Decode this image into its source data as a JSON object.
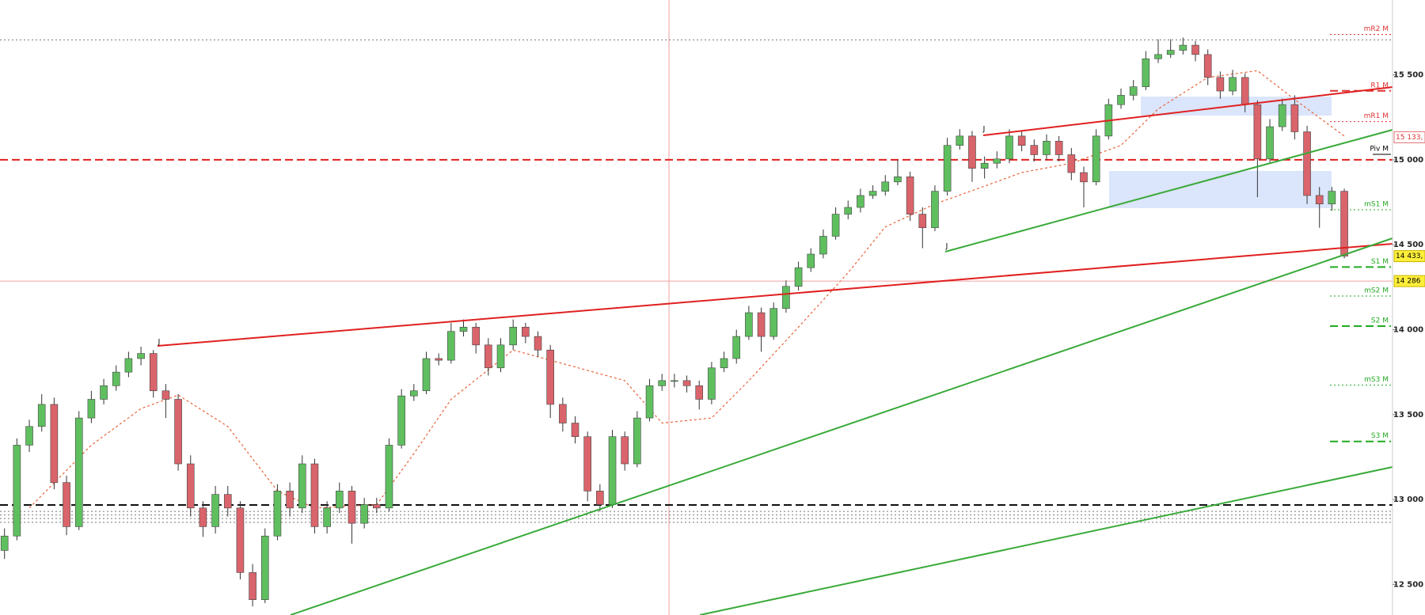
{
  "chart_data": {
    "type": "candlestick",
    "up_color": "#5fbf5f",
    "down_color": "#d9646b",
    "wick_color": "#333",
    "ylim": [
      12320,
      15941
    ],
    "yticks": [
      {
        "value": 12500,
        "label": "12 500"
      },
      {
        "value": 13000,
        "label": "13 000"
      },
      {
        "value": 13500,
        "label": "13 500"
      },
      {
        "value": 14000,
        "label": "14 000"
      },
      {
        "value": 14500,
        "label": "14 500"
      },
      {
        "value": 15000,
        "label": "15 000"
      },
      {
        "value": 15500,
        "label": "15 500"
      }
    ],
    "candles": [
      [
        12700,
        12830,
        12650,
        12785
      ],
      [
        12785,
        13360,
        12760,
        13320
      ],
      [
        13320,
        13470,
        13280,
        13430
      ],
      [
        13430,
        13620,
        13400,
        13560
      ],
      [
        13560,
        13600,
        13060,
        13100
      ],
      [
        13100,
        13140,
        12790,
        12840
      ],
      [
        12840,
        13520,
        12820,
        13480
      ],
      [
        13480,
        13640,
        13450,
        13590
      ],
      [
        13590,
        13710,
        13560,
        13670
      ],
      [
        13670,
        13790,
        13640,
        13750
      ],
      [
        13750,
        13870,
        13720,
        13830
      ],
      [
        13830,
        13900,
        13790,
        13860
      ],
      [
        13860,
        13880,
        13600,
        13640
      ],
      [
        13640,
        13680,
        13480,
        13590
      ],
      [
        13590,
        13620,
        13170,
        13210
      ],
      [
        13210,
        13260,
        12900,
        12950
      ],
      [
        12950,
        12990,
        12780,
        12840
      ],
      [
        12840,
        13080,
        12800,
        13030
      ],
      [
        13030,
        13080,
        12900,
        12950
      ],
      [
        12950,
        12990,
        12530,
        12570
      ],
      [
        12570,
        12620,
        12370,
        12410
      ],
      [
        12410,
        12830,
        12390,
        12785
      ],
      [
        12785,
        13090,
        12760,
        13050
      ],
      [
        13050,
        13100,
        12900,
        12950
      ],
      [
        12950,
        13260,
        12920,
        13210
      ],
      [
        13210,
        13240,
        12800,
        12840
      ],
      [
        12840,
        12990,
        12800,
        12950
      ],
      [
        12950,
        13100,
        12920,
        13050
      ],
      [
        13050,
        13080,
        12740,
        12860
      ],
      [
        12860,
        13010,
        12830,
        12970
      ],
      [
        12970,
        13010,
        12920,
        12950
      ],
      [
        12950,
        13360,
        12930,
        13320
      ],
      [
        13320,
        13650,
        13300,
        13610
      ],
      [
        13610,
        13680,
        13580,
        13640
      ],
      [
        13640,
        13870,
        13620,
        13830
      ],
      [
        13830,
        13860,
        13790,
        13820
      ],
      [
        13820,
        14040,
        13800,
        13990
      ],
      [
        13990,
        14060,
        13960,
        14015
      ],
      [
        14015,
        14040,
        13860,
        13910
      ],
      [
        13910,
        13950,
        13730,
        13775
      ],
      [
        13775,
        13950,
        13750,
        13910
      ],
      [
        13910,
        14060,
        13880,
        14015
      ],
      [
        14015,
        14040,
        13920,
        13960
      ],
      [
        13960,
        13990,
        13840,
        13880
      ],
      [
        13880,
        13910,
        13480,
        13560
      ],
      [
        13560,
        13600,
        13400,
        13450
      ],
      [
        13450,
        13490,
        13330,
        13370
      ],
      [
        13370,
        13400,
        12990,
        13050
      ],
      [
        13050,
        13090,
        12930,
        12970
      ],
      [
        12970,
        13410,
        12950,
        13370
      ],
      [
        13370,
        13400,
        13170,
        13210
      ],
      [
        13210,
        13520,
        13190,
        13480
      ],
      [
        13480,
        13710,
        13460,
        13670
      ],
      [
        13670,
        13740,
        13640,
        13700
      ],
      [
        13700,
        13740,
        13660,
        13700
      ],
      [
        13700,
        13730,
        13630,
        13670
      ],
      [
        13670,
        13700,
        13530,
        13590
      ],
      [
        13590,
        13810,
        13560,
        13775
      ],
      [
        13775,
        13870,
        13750,
        13830
      ],
      [
        13830,
        14000,
        13800,
        13960
      ],
      [
        13960,
        14140,
        13940,
        14100
      ],
      [
        14100,
        14130,
        13870,
        13960
      ],
      [
        13960,
        14160,
        13940,
        14125
      ],
      [
        14125,
        14290,
        14100,
        14255
      ],
      [
        14255,
        14400,
        14230,
        14365
      ],
      [
        14365,
        14480,
        14340,
        14445
      ],
      [
        14445,
        14590,
        14420,
        14550
      ],
      [
        14550,
        14720,
        14530,
        14680
      ],
      [
        14680,
        14760,
        14650,
        14720
      ],
      [
        14720,
        14830,
        14690,
        14790
      ],
      [
        14790,
        14850,
        14770,
        14815
      ],
      [
        14815,
        14910,
        14790,
        14870
      ],
      [
        14870,
        15000,
        14850,
        14900
      ],
      [
        14900,
        14930,
        14640,
        14680
      ],
      [
        14680,
        14720,
        14480,
        14600
      ],
      [
        14600,
        14850,
        14580,
        14815
      ],
      [
        14815,
        15130,
        14790,
        15085
      ],
      [
        15085,
        15180,
        15060,
        15140
      ],
      [
        15140,
        15170,
        14870,
        14950
      ],
      [
        14950,
        15020,
        14890,
        14980
      ],
      [
        14980,
        15050,
        14950,
        15005
      ],
      [
        15005,
        15180,
        14980,
        15140
      ],
      [
        15140,
        15170,
        15050,
        15085
      ],
      [
        15085,
        15120,
        14990,
        15030
      ],
      [
        15030,
        15150,
        15000,
        15110
      ],
      [
        15110,
        15140,
        14990,
        15030
      ],
      [
        15030,
        15070,
        14880,
        14925
      ],
      [
        14925,
        14960,
        14720,
        14870
      ],
      [
        14870,
        15180,
        14850,
        15140
      ],
      [
        15140,
        15360,
        15120,
        15325
      ],
      [
        15325,
        15420,
        15300,
        15380
      ],
      [
        15380,
        15470,
        15350,
        15430
      ],
      [
        15430,
        15640,
        15410,
        15595
      ],
      [
        15595,
        15710,
        15570,
        15620
      ],
      [
        15620,
        15710,
        15600,
        15645
      ],
      [
        15645,
        15720,
        15620,
        15675
      ],
      [
        15675,
        15700,
        15580,
        15620
      ],
      [
        15620,
        15650,
        15440,
        15485
      ],
      [
        15485,
        15520,
        15360,
        15405
      ],
      [
        15405,
        15530,
        15380,
        15485
      ],
      [
        15485,
        15510,
        15280,
        15325
      ],
      [
        15325,
        15350,
        14780,
        15005
      ],
      [
        15005,
        15240,
        14980,
        15195
      ],
      [
        15195,
        15360,
        15170,
        15325
      ],
      [
        15325,
        15380,
        15120,
        15165
      ],
      [
        15165,
        15200,
        14740,
        14790
      ],
      [
        14790,
        14840,
        14600,
        14740
      ],
      [
        14740,
        14840,
        14700,
        14815
      ],
      [
        14815,
        14830,
        14420,
        14433
      ]
    ],
    "ma": {
      "color": "#e8643c",
      "x": [
        2,
        7,
        11,
        14,
        18,
        22,
        25,
        30,
        33,
        36,
        41,
        45,
        50,
        53,
        57,
        60,
        64,
        68,
        71,
        75,
        79,
        82,
        86,
        90,
        93,
        97,
        101,
        104,
        108
      ],
      "values": [
        12950,
        13320,
        13535,
        13615,
        13430,
        13050,
        12950,
        12970,
        13270,
        13590,
        13880,
        13800,
        13700,
        13450,
        13480,
        13700,
        14015,
        14335,
        14605,
        14740,
        14845,
        14925,
        14980,
        15085,
        15300,
        15485,
        15525,
        15355,
        15140
      ]
    },
    "levels": [
      {
        "name": "mR2 M",
        "value": 15738,
        "color": "#d33",
        "style": "dotted"
      },
      {
        "name": "R1 M",
        "value": 15406,
        "color": "#d33",
        "style": "dashed"
      },
      {
        "name": "mR1 M",
        "value": 15225,
        "color": "#d33",
        "style": "dotted"
      },
      {
        "name": "Piv M",
        "value": 15032,
        "color": "#000",
        "style": "solid"
      },
      {
        "name": "mS1 M",
        "value": 14706,
        "color": "#2a2",
        "style": "dotted"
      },
      {
        "name": "S1 M",
        "value": 14369,
        "color": "#2a2",
        "style": "dashed"
      },
      {
        "name": "mS2 M",
        "value": 14198,
        "color": "#2a2",
        "style": "dotted"
      },
      {
        "name": "S2 M",
        "value": 14021,
        "color": "#2a2",
        "style": "dashed"
      },
      {
        "name": "mS3 M",
        "value": 13674,
        "color": "#2a2",
        "style": "dotted"
      },
      {
        "name": "S3 M",
        "value": 13342,
        "color": "#2a2",
        "style": "dashed"
      }
    ],
    "hlines": [
      {
        "value": 15000,
        "color": "#e02020",
        "style": "dashed"
      },
      {
        "value": 12968,
        "color": "#111",
        "style": "dashed"
      },
      {
        "value": 12930,
        "color": "#777",
        "style": "dotted"
      },
      {
        "value": 12909,
        "color": "#777",
        "style": "dotted"
      },
      {
        "value": 12888,
        "color": "#777",
        "style": "dotted"
      },
      {
        "value": 12866,
        "color": "#777",
        "style": "dotted"
      },
      {
        "value": 15706,
        "color": "#777",
        "style": "dotted"
      }
    ],
    "price_tags": [
      {
        "value": 15133,
        "label": "15 133,",
        "style": "outline"
      },
      {
        "value": 14433,
        "label": "14 433,",
        "style": "yellow"
      },
      {
        "value": 14286,
        "label": "14 286",
        "style": "yellow"
      }
    ],
    "annotations": [
      "J",
      "J",
      "J"
    ]
  }
}
